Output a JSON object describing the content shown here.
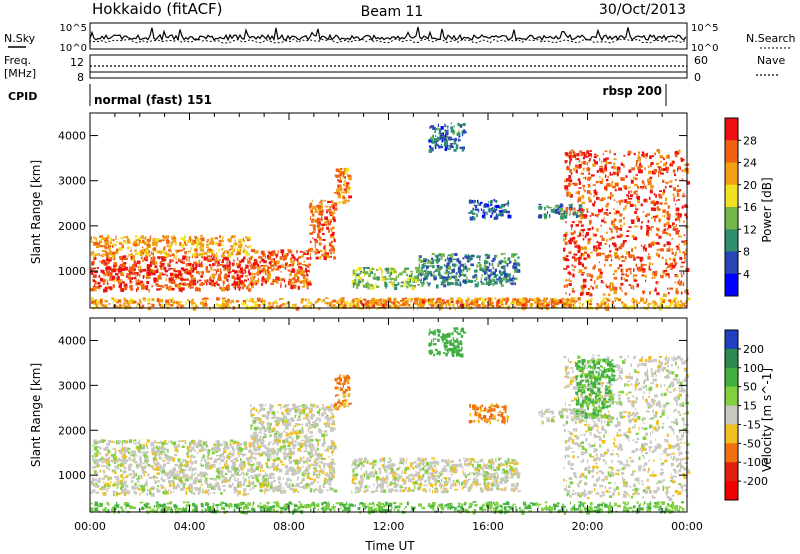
{
  "header": {
    "site": "Hokkaido (fitACF)",
    "beam": "Beam 11",
    "date": "30/Oct/2013"
  },
  "top_panels": {
    "nsky": {
      "left_label": "N.Sky",
      "right_label": "N.Search",
      "left_ticks": [
        "10^5",
        "10^0"
      ],
      "right_ticks": [
        "10^5",
        "10^0"
      ]
    },
    "freq": {
      "left_label_1": "Freq.",
      "left_label_2": "[MHz]",
      "right_label": "Nave",
      "left_ticks": [
        "12",
        "8"
      ],
      "right_ticks": [
        "60",
        "0"
      ]
    },
    "cpid": {
      "label": "CPID",
      "modes": [
        {
          "text": "normal (fast) 151",
          "start_hour": 0
        },
        {
          "text": "rbsp 200",
          "start_hour": 23
        }
      ]
    }
  },
  "chart_data": [
    {
      "type": "heatmap",
      "name": "power",
      "ylabel": "Slant Range [km]",
      "x_range_hours": [
        0,
        24
      ],
      "ylim": [
        180,
        4500
      ],
      "y_ticks": [
        "1000",
        "2000",
        "3000",
        "4000"
      ],
      "colorbar": {
        "label": "Power [dB]",
        "ticks": [
          "4",
          "8",
          "12",
          "16",
          "20",
          "24",
          "28"
        ],
        "range": [
          0,
          32
        ],
        "colors": [
          "#0000ff",
          "#2a46b4",
          "#2f8f6f",
          "#74b84a",
          "#f0e020",
          "#f0a010",
          "#f06010",
          "#ee1010"
        ]
      },
      "scatter_regions": [
        {
          "t0": 0.0,
          "t1": 6.4,
          "r0": 600,
          "r1": 1350,
          "value": 28
        },
        {
          "t0": 0.0,
          "t1": 6.4,
          "r0": 1350,
          "r1": 1800,
          "value": 22
        },
        {
          "t0": 6.4,
          "t1": 8.8,
          "r0": 650,
          "r1": 1500,
          "value": 26
        },
        {
          "t0": 8.8,
          "t1": 9.8,
          "r0": 1300,
          "r1": 2600,
          "value": 25
        },
        {
          "t0": 9.8,
          "t1": 10.4,
          "r0": 2500,
          "r1": 3300,
          "value": 24
        },
        {
          "t0": 10.5,
          "t1": 13.2,
          "r0": 650,
          "r1": 1100,
          "value": 14
        },
        {
          "t0": 13.2,
          "t1": 17.2,
          "r0": 700,
          "r1": 1400,
          "value": 10
        },
        {
          "t0": 13.6,
          "t1": 15.0,
          "r0": 3700,
          "r1": 4300,
          "value": 8
        },
        {
          "t0": 15.2,
          "t1": 16.8,
          "r0": 2200,
          "r1": 2600,
          "value": 7
        },
        {
          "t0": 18.0,
          "t1": 19.8,
          "r0": 2200,
          "r1": 2500,
          "value": 9
        },
        {
          "t0": 19.0,
          "t1": 24.0,
          "r0": 500,
          "r1": 3700,
          "value": 27
        },
        {
          "t0": 0.0,
          "t1": 24.0,
          "r0": 200,
          "r1": 420,
          "value": 22
        },
        {
          "t0": 10.0,
          "t1": 19.5,
          "r0": 250,
          "r1": 420,
          "value": 24
        }
      ]
    },
    {
      "type": "heatmap",
      "name": "velocity",
      "ylabel": "Slant Range [km]",
      "xlabel": "Time UT",
      "x_range_hours": [
        0,
        24
      ],
      "x_ticks": [
        "00:00",
        "04:00",
        "08:00",
        "12:00",
        "16:00",
        "20:00",
        "00:00"
      ],
      "ylim": [
        180,
        4500
      ],
      "y_ticks": [
        "1000",
        "2000",
        "3000",
        "4000"
      ],
      "colorbar": {
        "label": "Velocity [m s^-1]",
        "ticks": [
          "200",
          "100",
          "50",
          "15",
          "-15",
          "-50",
          "-100",
          "-200"
        ],
        "colors": [
          "#2040c0",
          "#2a8a50",
          "#40b040",
          "#80d040",
          "#c8c8c0",
          "#f0c020",
          "#f07010",
          "#e02010",
          "#ee0000"
        ]
      },
      "scatter_regions": [
        {
          "t0": 0.0,
          "t1": 6.4,
          "r0": 600,
          "r1": 1800,
          "value": 0
        },
        {
          "t0": 6.4,
          "t1": 9.8,
          "r0": 650,
          "r1": 2600,
          "value": 0
        },
        {
          "t0": 9.8,
          "t1": 10.4,
          "r0": 2500,
          "r1": 3300,
          "value": -40
        },
        {
          "t0": 10.5,
          "t1": 17.2,
          "r0": 650,
          "r1": 1400,
          "value": 0
        },
        {
          "t0": 13.6,
          "t1": 15.0,
          "r0": 3700,
          "r1": 4300,
          "value": 60
        },
        {
          "t0": 15.2,
          "t1": 16.8,
          "r0": 2200,
          "r1": 2600,
          "value": -40
        },
        {
          "t0": 18.0,
          "t1": 19.8,
          "r0": 2200,
          "r1": 2500,
          "value": 0
        },
        {
          "t0": 19.0,
          "t1": 24.0,
          "r0": 500,
          "r1": 3700,
          "value": 0
        },
        {
          "t0": 19.5,
          "t1": 21.0,
          "r0": 2300,
          "r1": 3600,
          "value": 40
        },
        {
          "t0": 0.0,
          "t1": 24.0,
          "r0": 200,
          "r1": 420,
          "value": 30
        }
      ]
    }
  ]
}
